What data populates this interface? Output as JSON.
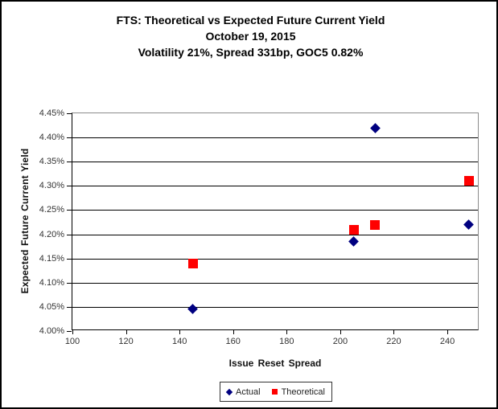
{
  "window": {
    "background": "#ffffff",
    "border_color": "#000000"
  },
  "chart_data": {
    "type": "scatter",
    "title": "FTS: Theoretical vs Expected Future Current Yield",
    "subtitle_lines": [
      "October 19, 2015",
      "Volatility 21%, Spread 331bp, GOC5 0.82%"
    ],
    "xlabel": "Issue Reset Spread",
    "ylabel": "Expected Future Current Yield",
    "xlim": [
      100,
      252
    ],
    "ylim": [
      4.0,
      4.45
    ],
    "x_ticks": [
      100,
      120,
      140,
      160,
      180,
      200,
      220,
      240
    ],
    "y_ticks": [
      4.0,
      4.05,
      4.1,
      4.15,
      4.2,
      4.25,
      4.3,
      4.35,
      4.4,
      4.45
    ],
    "y_tick_decimals": 2,
    "y_tick_suffix": "%",
    "grid": true,
    "legend_position": "bottom-center",
    "series": [
      {
        "name": "Actual",
        "marker": "diamond",
        "color": "#000080",
        "points": [
          [
            145,
            4.045
          ],
          [
            205,
            4.185
          ],
          [
            213,
            4.42
          ],
          [
            248,
            4.22
          ]
        ]
      },
      {
        "name": "Theoretical",
        "marker": "square",
        "color": "#ff0000",
        "points": [
          [
            145,
            4.14
          ],
          [
            205,
            4.21
          ],
          [
            213,
            4.22
          ],
          [
            248,
            4.31
          ]
        ]
      }
    ],
    "colors": {
      "gridline": "#000000",
      "plot_border": "#8c8c8c",
      "axis": "#000000",
      "tick_label": "#333333",
      "title_text": "#000000"
    }
  }
}
